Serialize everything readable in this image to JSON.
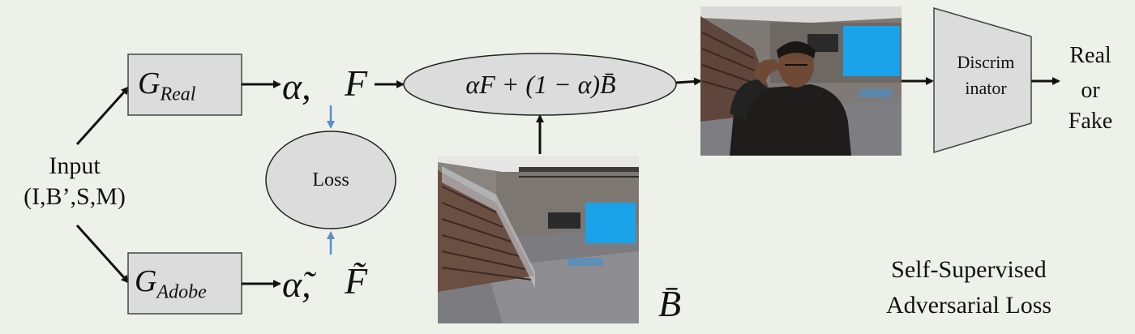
{
  "input": {
    "title": "Input",
    "args": "(I,B’,S,M)"
  },
  "g_real": {
    "symbol": "G",
    "subscript": "Real"
  },
  "g_adobe": {
    "symbol": "G",
    "subscript": "Adobe"
  },
  "real_outputs": {
    "alpha": "α,",
    "foreground": "F"
  },
  "adobe_outputs": {
    "alpha": "α̃,",
    "foreground": "F̃"
  },
  "loss": {
    "label": "Loss"
  },
  "composite": {
    "formula": "αF + (1 − α)B̄"
  },
  "background_image": {
    "label": "B̄"
  },
  "discriminator": {
    "line1": "Discrim",
    "line2": "inator"
  },
  "output": {
    "line1": "Real",
    "line2": "or",
    "line3": "Fake"
  },
  "caption": {
    "line1": "Self-Supervised",
    "line2": "Adversarial Loss"
  },
  "colors": {
    "background": "#eef1e9",
    "box_fill": "#dcdcdc",
    "loss_arrow": "#5b8ec9",
    "screen_blue": "#1aa3e8"
  }
}
